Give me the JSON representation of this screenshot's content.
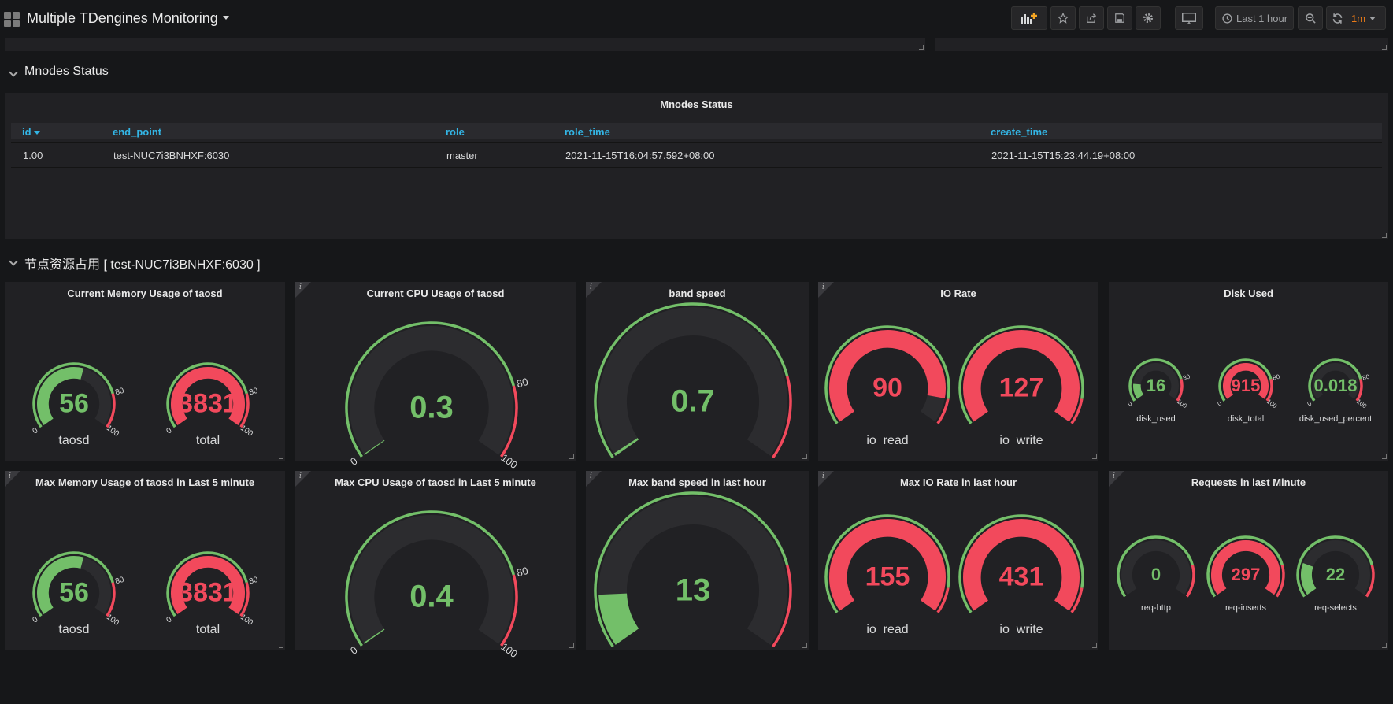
{
  "header": {
    "title": "Multiple TDengines Monitoring",
    "time_range": "Last 1 hour",
    "refresh_interval": "1m"
  },
  "rows": {
    "mnodes": "Mnodes Status",
    "resources": "节点资源占用 [ test-NUC7i3BNHXF:6030 ]"
  },
  "mnodes_table": {
    "title": "Mnodes Status",
    "columns": [
      "id",
      "end_point",
      "role",
      "role_time",
      "create_time"
    ],
    "rows": [
      [
        "1.00",
        "test-NUC7i3BNHXF:6030",
        "master",
        "2021-11-15T16:04:57.592+08:00",
        "2021-11-15T15:23:44.19+08:00"
      ]
    ]
  },
  "colors": {
    "green": "#73bf69",
    "red": "#f2495c",
    "track": "#2c2c2f",
    "accent": "#33b5e5"
  },
  "panels": {
    "mem": {
      "title": "Current Memory Usage of taosd",
      "gauges": [
        {
          "label": "taosd",
          "value": "56",
          "v": 56,
          "min": 0,
          "max": 100,
          "threshold": 80,
          "ticks": [
            "0",
            "80",
            "100"
          ]
        },
        {
          "label": "total",
          "value": "3831",
          "v": 100,
          "min": 0,
          "max": 100,
          "threshold": 80,
          "ticks": [
            "0",
            "80",
            "100"
          ]
        }
      ]
    },
    "cpu": {
      "title": "Current CPU Usage of taosd",
      "gauges": [
        {
          "label": "",
          "value": "0.3",
          "v": 0.3,
          "min": 0,
          "max": 100,
          "threshold": 80,
          "ticks": [
            "0",
            "80",
            "100"
          ]
        }
      ]
    },
    "band": {
      "title": "band speed",
      "gauges": [
        {
          "label": "",
          "value": "0.7",
          "v": 0.7,
          "min": 0,
          "max": 100,
          "threshold": 80,
          "ticks": []
        }
      ]
    },
    "io": {
      "title": "IO Rate",
      "gauges": [
        {
          "label": "io_read",
          "value": "90",
          "v": 90,
          "min": 0,
          "max": 100,
          "threshold": 90,
          "ticks": []
        },
        {
          "label": "io_write",
          "value": "127",
          "v": 100,
          "min": 0,
          "max": 100,
          "threshold": 90,
          "ticks": []
        }
      ]
    },
    "disk": {
      "title": "Disk Used",
      "gauges": [
        {
          "label": "disk_used",
          "value": "16",
          "v": 16,
          "min": 0,
          "max": 100,
          "threshold": 80,
          "ticks": [
            "0",
            "80",
            "100"
          ]
        },
        {
          "label": "disk_total",
          "value": "915",
          "v": 100,
          "min": 0,
          "max": 100,
          "threshold": 80,
          "ticks": [
            "0",
            "80",
            "100"
          ]
        },
        {
          "label": "disk_used_percent",
          "value": "0.018",
          "v": 0.018,
          "min": 0,
          "max": 100,
          "threshold": 80,
          "ticks": [
            "0",
            "80",
            "100"
          ]
        }
      ]
    },
    "maxmem": {
      "title": "Max Memory Usage of taosd in Last 5 minute",
      "gauges": [
        {
          "label": "taosd",
          "value": "56",
          "v": 56,
          "min": 0,
          "max": 100,
          "threshold": 80,
          "ticks": [
            "0",
            "80",
            "100"
          ]
        },
        {
          "label": "total",
          "value": "3831",
          "v": 100,
          "min": 0,
          "max": 100,
          "threshold": 80,
          "ticks": [
            "0",
            "80",
            "100"
          ]
        }
      ]
    },
    "maxcpu": {
      "title": "Max CPU Usage of taosd in Last 5 minute",
      "gauges": [
        {
          "label": "",
          "value": "0.4",
          "v": 0.4,
          "min": 0,
          "max": 100,
          "threshold": 80,
          "ticks": [
            "0",
            "80",
            "100"
          ]
        }
      ]
    },
    "maxband": {
      "title": "Max band speed in last hour",
      "gauges": [
        {
          "label": "",
          "value": "13",
          "v": 13,
          "min": 0,
          "max": 100,
          "threshold": 80,
          "ticks": []
        }
      ]
    },
    "maxio": {
      "title": "Max IO Rate in last hour",
      "gauges": [
        {
          "label": "io_read",
          "value": "155",
          "v": 100,
          "min": 0,
          "max": 100,
          "threshold": 90,
          "ticks": []
        },
        {
          "label": "io_write",
          "value": "431",
          "v": 100,
          "min": 0,
          "max": 100,
          "threshold": 90,
          "ticks": []
        }
      ]
    },
    "req": {
      "title": "Requests in last Minute",
      "gauges": [
        {
          "label": "req-http",
          "value": "0",
          "v": 0,
          "min": 0,
          "max": 100,
          "threshold": 80,
          "ticks": []
        },
        {
          "label": "req-inserts",
          "value": "297",
          "v": 100,
          "min": 0,
          "max": 100,
          "threshold": 80,
          "ticks": []
        },
        {
          "label": "req-selects",
          "value": "22",
          "v": 22,
          "min": 0,
          "max": 100,
          "threshold": 80,
          "ticks": []
        }
      ]
    }
  }
}
